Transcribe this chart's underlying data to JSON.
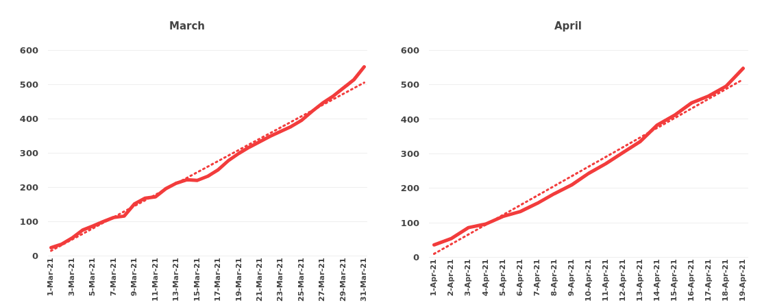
{
  "chart_data": [
    {
      "type": "line",
      "title": "March",
      "categories": [
        "1-Mar-21",
        null,
        "3-Mar-21",
        null,
        "5-Mar-21",
        null,
        "7-Mar-21",
        null,
        "9-Mar-21",
        null,
        "11-Mar-21",
        null,
        "13-Mar-21",
        null,
        "15-Mar-21",
        null,
        "17-Mar-21",
        null,
        "19-Mar-21",
        null,
        "21-Mar-21",
        null,
        "23-Mar-21",
        null,
        "25-Mar-21",
        null,
        "27-Mar-21",
        null,
        "29-Mar-21",
        null,
        "31-Mar-21"
      ],
      "series": [
        {
          "color": "#f23c3c",
          "values": [
            24,
            34,
            52,
            75,
            87,
            100,
            112,
            116,
            152,
            168,
            172,
            196,
            212,
            222,
            220,
            232,
            251,
            278,
            299,
            317,
            333,
            349,
            363,
            377,
            395,
            421,
            445,
            465,
            489,
            513,
            551
          ]
        },
        {
          "type": "line",
          "color": "#f23c3c",
          "line_style": "dotted",
          "x": [
            "1-Mar-21",
            "31-Mar-21"
          ],
          "values": [
            15,
            505
          ]
        }
      ],
      "ylim": [
        0,
        600
      ],
      "yticks": [
        0,
        100,
        200,
        300,
        400,
        500,
        600
      ],
      "grid": "y",
      "legend": false
    },
    {
      "type": "line",
      "title": "April",
      "categories": [
        "1-Apr-21",
        "2-Apr-21",
        "3-Apr-21",
        "4-Apr-21",
        "5-Apr-21",
        "6-Apr-21",
        "7-Apr-21",
        "8-Apr-21",
        "9-Apr-21",
        "10-Apr-21",
        "11-Apr-21",
        "12-Apr-21",
        "13-Apr-21",
        "14-Apr-21",
        "15-Apr-21",
        "16-Apr-21",
        "17-Apr-21",
        "18-Apr-21",
        "19-Apr-21"
      ],
      "series": [
        {
          "color": "#f23c3c",
          "values": [
            36,
            54,
            86,
            96,
            118,
            132,
            156,
            184,
            209,
            243,
            271,
            303,
            335,
            383,
            411,
            447,
            467,
            495,
            547
          ]
        },
        {
          "type": "line",
          "color": "#f23c3c",
          "line_style": "dotted",
          "x": [
            "1-Apr-21",
            "19-Apr-21"
          ],
          "values": [
            10,
            515
          ]
        }
      ],
      "ylim": [
        0,
        600
      ],
      "yticks": [
        0,
        100,
        200,
        300,
        400,
        500,
        600
      ],
      "grid": "y",
      "legend": false
    }
  ]
}
